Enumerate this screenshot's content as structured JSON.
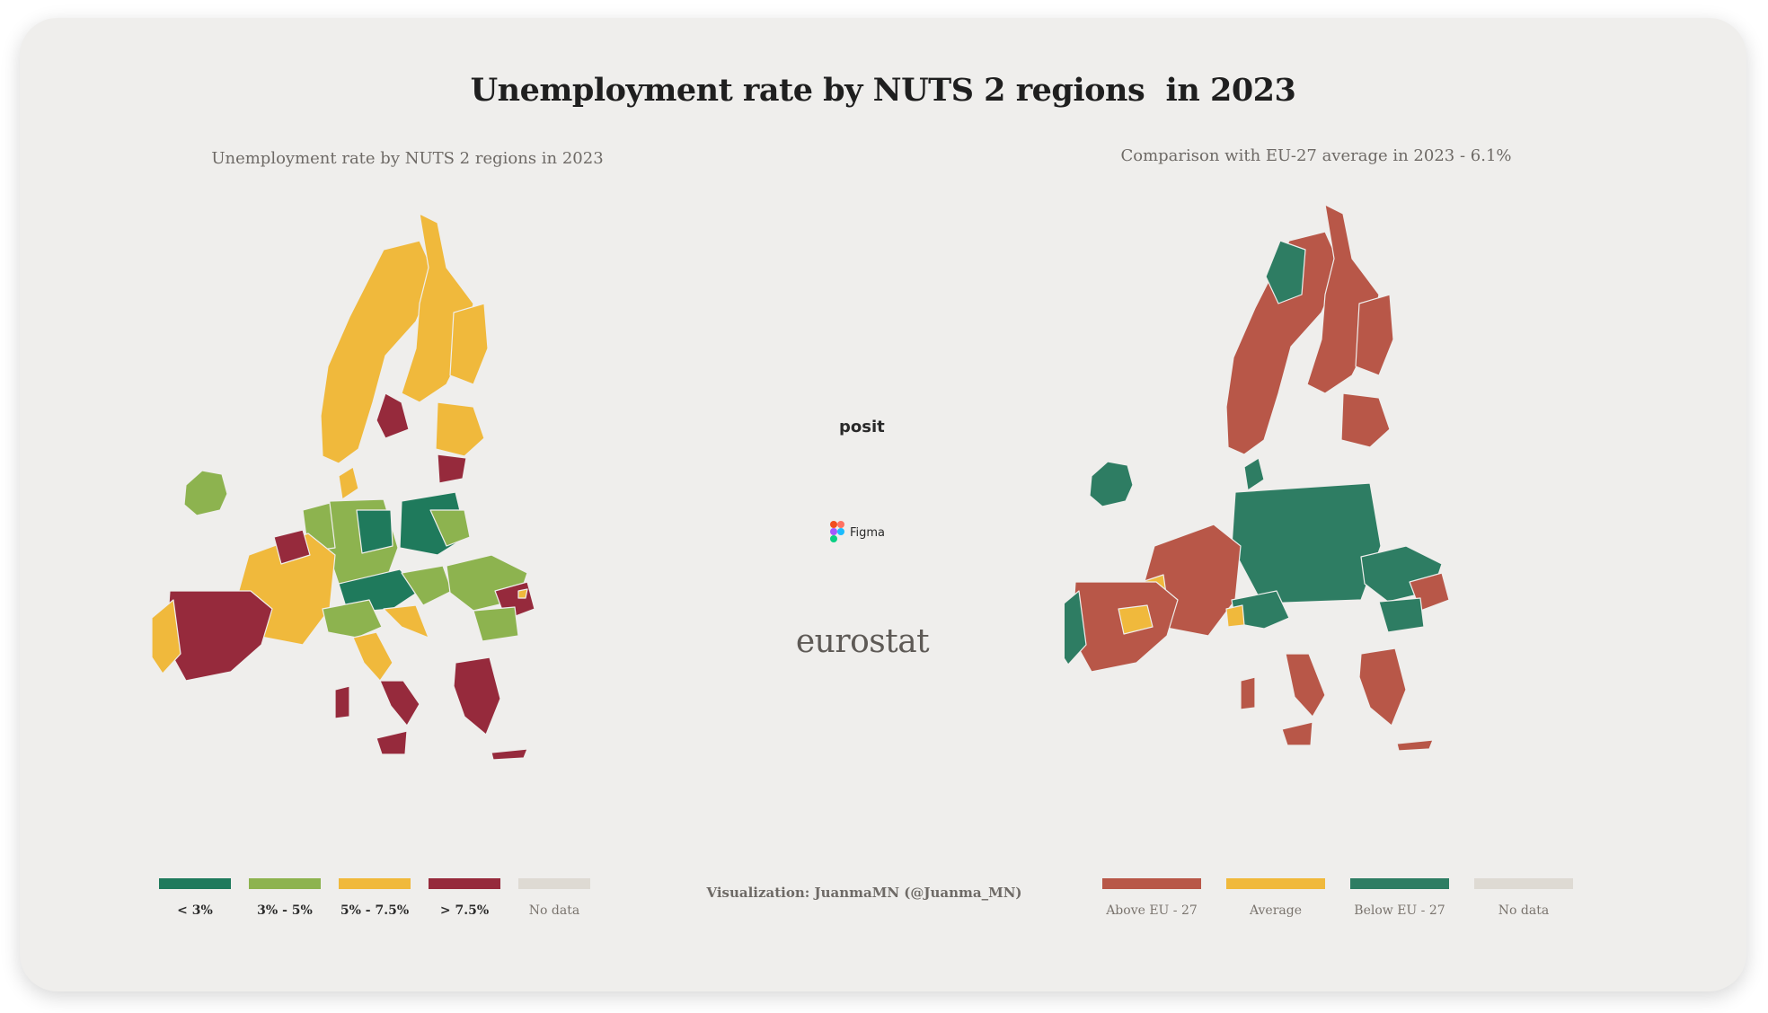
{
  "title": "Unemployment rate by NUTS 2 regions  in 2023",
  "left_panel": {
    "subtitle": "Unemployment rate by NUTS 2 regions in 2023",
    "legend": [
      {
        "label": "< 3%",
        "color": "#1f7a5c"
      },
      {
        "label": "3% - 5%",
        "color": "#8db34f"
      },
      {
        "label": "5% - 7.5%",
        "color": "#f0b93c"
      },
      {
        "label": "> 7.5%",
        "color": "#962a3c"
      },
      {
        "label": "No data",
        "color": "#dedad3"
      }
    ]
  },
  "right_panel": {
    "subtitle": "Comparison with EU-27 average in 2023 - 6.1%",
    "legend": [
      {
        "label": "Above  EU - 27",
        "color": "#b85748"
      },
      {
        "label": "Average",
        "color": "#f0b93c"
      },
      {
        "label": "Below EU - 27",
        "color": "#2e7d63"
      },
      {
        "label": "No data",
        "color": "#dedad3"
      }
    ]
  },
  "logos": {
    "posit": "posit",
    "figma": "Figma",
    "eurostat": "eurostat"
  },
  "credit": "Visualization: JuanmaMN (@Juanma_MN)"
}
